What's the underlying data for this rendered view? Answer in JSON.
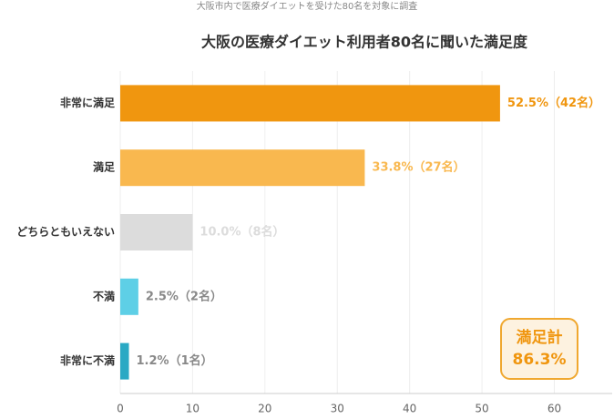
{
  "chart_data": {
    "type": "barh",
    "subtitle": "大阪市内で医療ダイエットを受けた80名を対象に調査",
    "title": "大阪の医療ダイエット利用者80名に聞いた満足度",
    "categories": [
      "非常に満足",
      "満足",
      "どちらともいえない",
      "不満",
      "非常に不満"
    ],
    "values": [
      52.5,
      33.8,
      10.0,
      2.5,
      1.2
    ],
    "value_labels": [
      "52.5%（42名）",
      "33.8%（27名）",
      "10.0%（8名）",
      "2.5%（2名）",
      "1.2%（1名）"
    ],
    "colors": [
      "#f0960f",
      "#f9b84f",
      "#dcdcdc",
      "#5ecfe6",
      "#2aa9c4"
    ],
    "label_colors": [
      "#f0960f",
      "#f9b84f",
      "#dcdcdc",
      "#888888",
      "#888888"
    ],
    "xlim": [
      0,
      68
    ],
    "xticks": [
      0,
      10,
      20,
      30,
      40,
      50,
      60
    ],
    "grid": true,
    "annotation": [
      "満足計",
      "86.3%"
    ]
  }
}
